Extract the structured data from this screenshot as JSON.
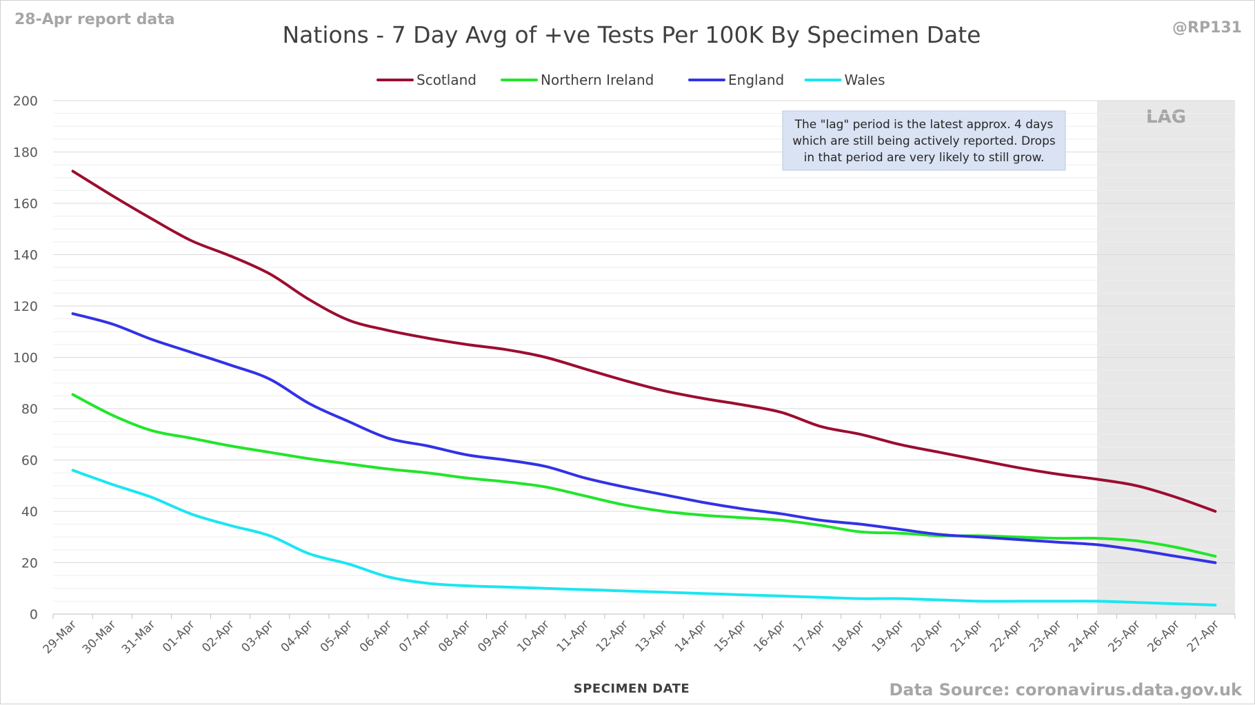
{
  "report_label": "28-Apr report data",
  "handle": "@RP131",
  "data_source": "Data Source: coronavirus.data.gov.uk",
  "note": {
    "lines": [
      "The \"lag\" period is the latest approx. 4 days",
      "which are still being actively reported. Drops",
      "in that period are very likely to still grow."
    ]
  },
  "lag": {
    "label": "LAG",
    "start_category": "24-Apr",
    "color": "#e8e8e8"
  },
  "chart_data": {
    "type": "line",
    "title": "Nations - 7 Day Avg of +ve Tests Per 100K By Specimen Date",
    "xlabel": "SPECIMEN DATE",
    "ylabel": "",
    "ylim": [
      0,
      200
    ],
    "yticks": [
      0,
      20,
      40,
      60,
      80,
      100,
      120,
      140,
      160,
      180,
      200
    ],
    "grid": true,
    "legend": "top",
    "categories": [
      "29-Mar",
      "30-Mar",
      "31-Mar",
      "01-Apr",
      "02-Apr",
      "03-Apr",
      "04-Apr",
      "05-Apr",
      "06-Apr",
      "07-Apr",
      "08-Apr",
      "09-Apr",
      "10-Apr",
      "11-Apr",
      "12-Apr",
      "13-Apr",
      "14-Apr",
      "15-Apr",
      "16-Apr",
      "17-Apr",
      "18-Apr",
      "19-Apr",
      "20-Apr",
      "21-Apr",
      "22-Apr",
      "23-Apr",
      "24-Apr",
      "25-Apr",
      "26-Apr",
      "27-Apr"
    ],
    "series": [
      {
        "name": "Scotland",
        "color": "#9b0d2f",
        "values": [
          172.5,
          163,
          154,
          145.5,
          139.5,
          132.5,
          122.5,
          114.5,
          110.5,
          107.5,
          105,
          103,
          100,
          95.5,
          91,
          87,
          84,
          81.5,
          78.5,
          73,
          70,
          66,
          63,
          60,
          57,
          54.5,
          52.5,
          50,
          45.5,
          40
        ]
      },
      {
        "name": "Northern Ireland",
        "color": "#22e52a",
        "values": [
          85.5,
          77.5,
          71.5,
          68.5,
          65.5,
          63,
          60.5,
          58.5,
          56.5,
          55,
          53,
          51.5,
          49.5,
          46,
          42.5,
          40,
          38.5,
          37.5,
          36.5,
          34.5,
          32,
          31.5,
          30.5,
          30.5,
          30,
          29.5,
          29.5,
          28.5,
          26,
          22.5
        ]
      },
      {
        "name": "England",
        "color": "#3232e6",
        "values": [
          117,
          113,
          107,
          102,
          97,
          91.5,
          82,
          75,
          68.5,
          65.5,
          62,
          60,
          57.5,
          53,
          49.5,
          46.5,
          43.5,
          41,
          39,
          36.5,
          35,
          33,
          31,
          30,
          29,
          28,
          27,
          25,
          22.5,
          20
        ]
      },
      {
        "name": "Wales",
        "color": "#1ae6f2",
        "values": [
          56,
          50.5,
          45.5,
          39,
          34.5,
          30.5,
          23.5,
          19.5,
          14.5,
          12,
          11,
          10.5,
          10,
          9.5,
          9,
          8.5,
          8,
          7.5,
          7,
          6.5,
          6,
          6,
          5.5,
          5,
          5,
          5,
          5,
          4.5,
          4,
          3.5
        ]
      }
    ]
  }
}
